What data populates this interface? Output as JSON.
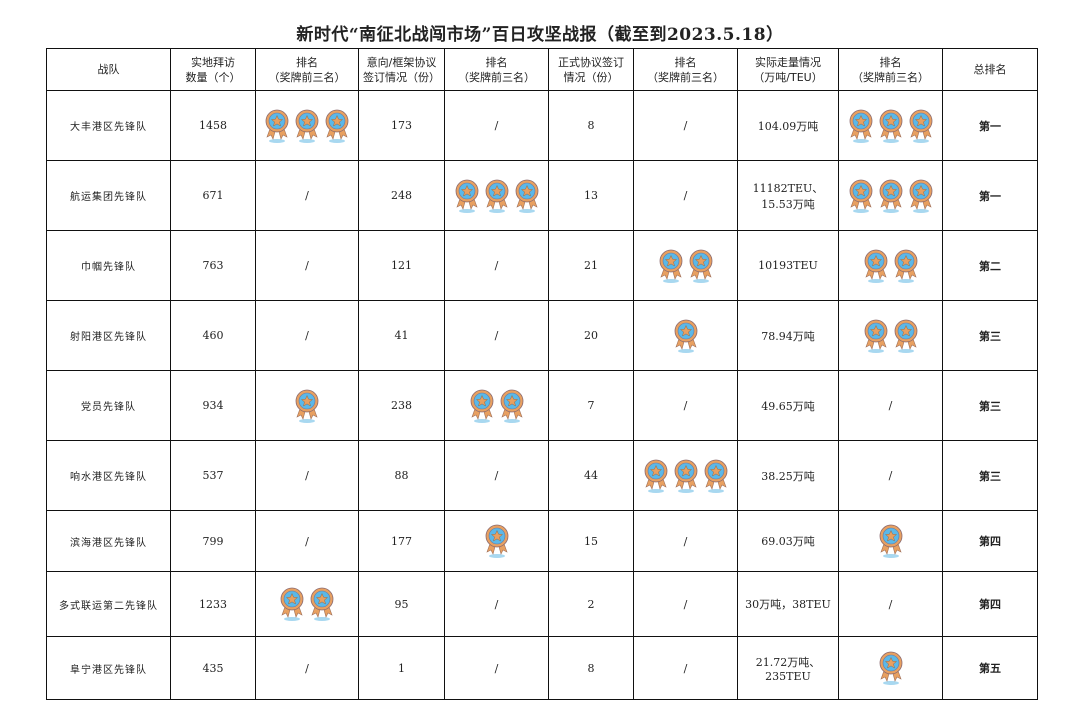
{
  "title": "新时代“南征北战闯市场”百日攻坚战报（截至到2023.5.18）",
  "headers": [
    "战队",
    "实地拜访\n数量（个）",
    "排名\n（奖牌前三名）",
    "意向/框架协议\n签订情况（份）",
    "排名\n（奖牌前三名）",
    "正式协议签订\n情况（份）",
    "排名\n（奖牌前三名）",
    "实际走量情况\n（万吨/TEU）",
    "排名\n（奖牌前三名）",
    "总排名"
  ],
  "colors": {
    "medal_fill": "#5bb8e8",
    "medal_ring": "#e8a060",
    "border": "#111111"
  },
  "rows": [
    {
      "team": "大丰港区先锋队",
      "visits": "1458",
      "visits_medals": 3,
      "intent": "173",
      "intent_medals": 0,
      "formal": "8",
      "formal_medals": 0,
      "volume": "104.09万吨",
      "volume_medals": 3,
      "total": "第一"
    },
    {
      "team": "航运集团先锋队",
      "visits": "671",
      "visits_medals": 0,
      "intent": "248",
      "intent_medals": 3,
      "formal": "13",
      "formal_medals": 0,
      "volume": "11182TEU、15.53万吨",
      "volume_medals": 3,
      "total": "第一"
    },
    {
      "team": "巾帼先锋队",
      "visits": "763",
      "visits_medals": 0,
      "intent": "121",
      "intent_medals": 0,
      "formal": "21",
      "formal_medals": 2,
      "volume": "10193TEU",
      "volume_medals": 2,
      "total": "第二"
    },
    {
      "team": "射阳港区先锋队",
      "visits": "460",
      "visits_medals": 0,
      "intent": "41",
      "intent_medals": 0,
      "formal": "20",
      "formal_medals": 1,
      "volume": "78.94万吨",
      "volume_medals": 2,
      "total": "第三"
    },
    {
      "team": "党员先锋队",
      "visits": "934",
      "visits_medals": 1,
      "intent": "238",
      "intent_medals": 2,
      "formal": "7",
      "formal_medals": 0,
      "volume": "49.65万吨",
      "volume_medals": 0,
      "total": "第三"
    },
    {
      "team": "响水港区先锋队",
      "visits": "537",
      "visits_medals": 0,
      "intent": "88",
      "intent_medals": 0,
      "formal": "44",
      "formal_medals": 3,
      "volume": "38.25万吨",
      "volume_medals": 0,
      "total": "第三"
    },
    {
      "team": "滨海港区先锋队",
      "visits": "799",
      "visits_medals": 0,
      "intent": "177",
      "intent_medals": 1,
      "formal": "15",
      "formal_medals": 0,
      "volume": "69.03万吨",
      "volume_medals": 1,
      "total": "第四"
    },
    {
      "team": "多式联运第二先锋队",
      "visits": "1233",
      "visits_medals": 2,
      "intent": "95",
      "intent_medals": 0,
      "formal": "2",
      "formal_medals": 0,
      "volume": "30万吨，38TEU",
      "volume_medals": 0,
      "total": "第四"
    },
    {
      "team": "阜宁港区先锋队",
      "visits": "435",
      "visits_medals": 0,
      "intent": "1",
      "intent_medals": 0,
      "formal": "8",
      "formal_medals": 0,
      "volume": "21.72万吨、235TEU",
      "volume_medals": 1,
      "total": "第五"
    }
  ],
  "empty_mark": "/"
}
